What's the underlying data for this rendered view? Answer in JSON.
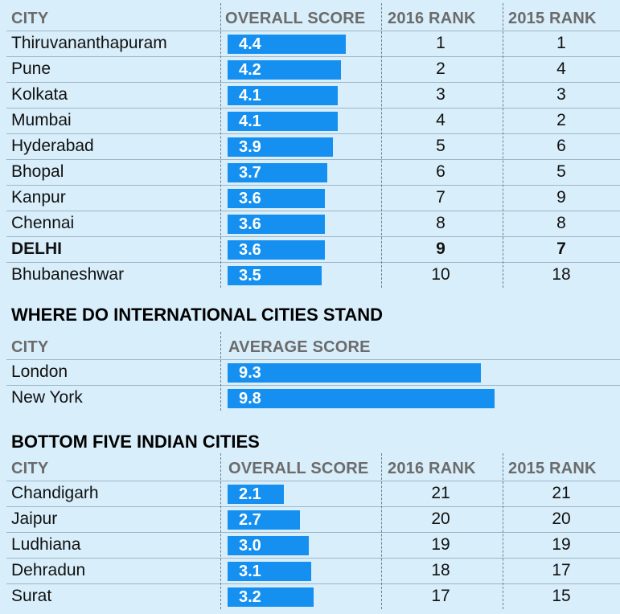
{
  "chart_data": [
    {
      "type": "table",
      "columns": [
        "CITY",
        "OVERALL SCORE",
        "2016 RANK",
        "2015 RANK"
      ],
      "rows": [
        {
          "city": "Thiruvananthapuram",
          "score": 4.4,
          "score_label": "4.4",
          "rank2016": "1",
          "rank2015": "1"
        },
        {
          "city": "Pune",
          "score": 4.2,
          "score_label": "4.2",
          "rank2016": "2",
          "rank2015": "4"
        },
        {
          "city": "Kolkata",
          "score": 4.1,
          "score_label": "4.1",
          "rank2016": "3",
          "rank2015": "3"
        },
        {
          "city": "Mumbai",
          "score": 4.1,
          "score_label": "4.1",
          "rank2016": "4",
          "rank2015": "2"
        },
        {
          "city": "Hyderabad",
          "score": 3.9,
          "score_label": "3.9",
          "rank2016": "5",
          "rank2015": "6"
        },
        {
          "city": "Bhopal",
          "score": 3.7,
          "score_label": "3.7",
          "rank2016": "6",
          "rank2015": "5"
        },
        {
          "city": "Kanpur",
          "score": 3.6,
          "score_label": "3.6",
          "rank2016": "7",
          "rank2015": "9"
        },
        {
          "city": "Chennai",
          "score": 3.6,
          "score_label": "3.6",
          "rank2016": "8",
          "rank2015": "8"
        },
        {
          "city": "DELHI",
          "score": 3.6,
          "score_label": "3.6",
          "rank2016": "9",
          "rank2015": "7",
          "bold": true
        },
        {
          "city": "Bhubaneshwar",
          "score": 3.5,
          "score_label": "3.5",
          "rank2016": "10",
          "rank2015": "18"
        }
      ]
    },
    {
      "type": "table",
      "title": "WHERE DO INTERNATIONAL CITIES STAND",
      "columns": [
        "CITY",
        "AVERAGE SCORE"
      ],
      "rows": [
        {
          "city": "London",
          "score": 9.3,
          "score_label": "9.3"
        },
        {
          "city": "New York",
          "score": 9.8,
          "score_label": "9.8"
        }
      ]
    },
    {
      "type": "table",
      "title": "BOTTOM FIVE INDIAN CITIES",
      "columns": [
        "CITY",
        "OVERALL SCORE",
        "2016 RANK",
        "2015 RANK"
      ],
      "rows": [
        {
          "city": "Chandigarh",
          "score": 2.1,
          "score_label": "2.1",
          "rank2016": "21",
          "rank2015": "21"
        },
        {
          "city": "Jaipur",
          "score": 2.7,
          "score_label": "2.7",
          "rank2016": "20",
          "rank2015": "20"
        },
        {
          "city": "Ludhiana",
          "score": 3.0,
          "score_label": "3.0",
          "rank2016": "19",
          "rank2015": "19"
        },
        {
          "city": "Dehradun",
          "score": 3.1,
          "score_label": "3.1",
          "rank2016": "18",
          "rank2015": "17"
        },
        {
          "city": "Surat",
          "score": 3.2,
          "score_label": "3.2",
          "rank2016": "17",
          "rank2015": "15"
        }
      ]
    }
  ],
  "colors": {
    "bar": "#1590f0",
    "background": "#d8eefa",
    "header_text": "#6b6b6b"
  }
}
